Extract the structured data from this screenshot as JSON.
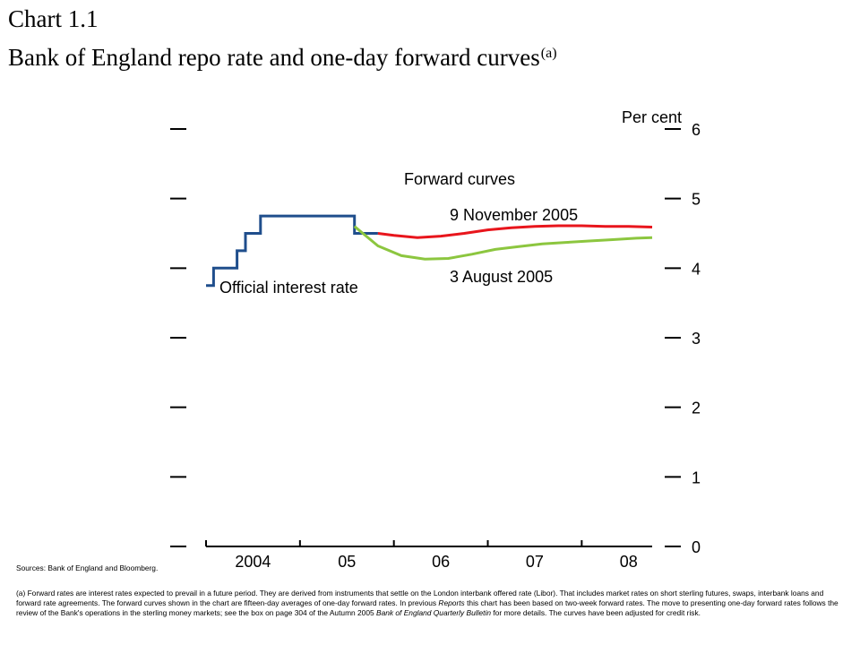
{
  "title": {
    "line1": "Chart 1.1",
    "line2": "Bank of England repo rate and one-day forward curves",
    "marker": "(a)"
  },
  "chart_data": {
    "type": "line",
    "ylabel": "Per cent",
    "ylim": [
      0,
      6
    ],
    "yticks": [
      "0",
      "1",
      "2",
      "3",
      "4",
      "5",
      "6"
    ],
    "xlim": [
      2003.75,
      2008.5
    ],
    "xticks": [
      {
        "label": "2004",
        "value": 2004.25
      },
      {
        "label": "05",
        "value": 2005.25
      },
      {
        "label": "06",
        "value": 2006.25
      },
      {
        "label": "07",
        "value": 2007.25
      },
      {
        "label": "08",
        "value": 2008.25
      }
    ],
    "xtick_marks": [
      2003.75,
      2004.75,
      2005.75,
      2006.75,
      2007.75
    ],
    "grid": false,
    "annotations": {
      "group_label": "Forward curves",
      "nov_label": "9 November 2005",
      "aug_label": "3 August 2005",
      "official_label": "Official interest rate"
    },
    "series": [
      {
        "name": "Official interest rate",
        "color": "#1f4e8c",
        "step": true,
        "points": [
          [
            2003.75,
            3.75
          ],
          [
            2003.83,
            3.75
          ],
          [
            2003.83,
            4.0
          ],
          [
            2004.08,
            4.0
          ],
          [
            2004.08,
            4.25
          ],
          [
            2004.17,
            4.25
          ],
          [
            2004.17,
            4.5
          ],
          [
            2004.33,
            4.5
          ],
          [
            2004.33,
            4.75
          ],
          [
            2005.33,
            4.75
          ],
          [
            2005.33,
            4.5
          ],
          [
            2005.58,
            4.5
          ]
        ]
      },
      {
        "name": "9 November 2005",
        "color": "#e8151c",
        "step": false,
        "points": [
          [
            2005.58,
            4.5
          ],
          [
            2005.75,
            4.47
          ],
          [
            2006.0,
            4.44
          ],
          [
            2006.25,
            4.46
          ],
          [
            2006.5,
            4.5
          ],
          [
            2006.75,
            4.55
          ],
          [
            2007.0,
            4.58
          ],
          [
            2007.25,
            4.6
          ],
          [
            2007.5,
            4.61
          ],
          [
            2007.75,
            4.61
          ],
          [
            2008.0,
            4.6
          ],
          [
            2008.25,
            4.6
          ],
          [
            2008.5,
            4.59
          ]
        ]
      },
      {
        "name": "3 August 2005",
        "color": "#8cc63f",
        "step": false,
        "points": [
          [
            2005.33,
            4.6
          ],
          [
            2005.58,
            4.32
          ],
          [
            2005.83,
            4.18
          ],
          [
            2006.08,
            4.13
          ],
          [
            2006.33,
            4.14
          ],
          [
            2006.58,
            4.2
          ],
          [
            2006.83,
            4.27
          ],
          [
            2007.08,
            4.31
          ],
          [
            2007.33,
            4.35
          ],
          [
            2007.58,
            4.37
          ],
          [
            2007.83,
            4.39
          ],
          [
            2008.08,
            4.41
          ],
          [
            2008.33,
            4.43
          ],
          [
            2008.5,
            4.44
          ]
        ]
      }
    ]
  },
  "sources": "Sources: Bank of England and Bloomberg.",
  "footnote": {
    "p1": "(a) Forward rates are interest rates expected to prevail in a future period. They are derived from instruments that settle on the London interbank offered rate (Libor). That includes market rates on short sterling futures, swaps, interbank loans and forward rate agreements. The forward curves shown in the chart are fifteen-day averages of one-day forward rates. In previous",
    "reports": "Reports",
    "p2": "this chart has been based on two-week forward rates. The move to presenting one-day forward rates follows the review of the Bank's operations in the sterling money markets; see the box on page 304 of the Autumn 2005",
    "bulletin": "Bank of England Quarterly Bulletin",
    "p3": "for more details. The curves have been adjusted for credit risk."
  }
}
